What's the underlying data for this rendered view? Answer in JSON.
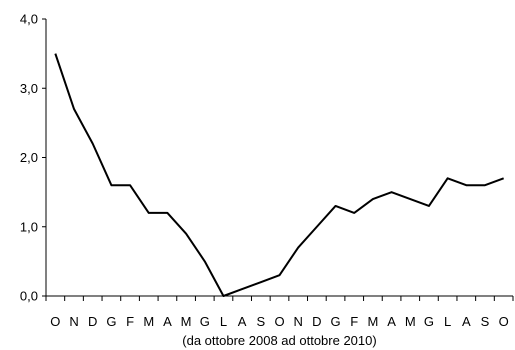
{
  "chart_data": {
    "type": "line",
    "categories": [
      "O",
      "N",
      "D",
      "G",
      "F",
      "M",
      "A",
      "M",
      "G",
      "L",
      "A",
      "S",
      "O",
      "N",
      "D",
      "G",
      "F",
      "M",
      "A",
      "M",
      "G",
      "L",
      "A",
      "S",
      "O"
    ],
    "y_tick_labels": [
      "0,0",
      "1,0",
      "2,0",
      "3,0",
      "4,0"
    ],
    "y_ticks": [
      0,
      1,
      2,
      3,
      4
    ],
    "series": [
      {
        "values": [
          3.5,
          2.7,
          2.2,
          1.6,
          1.6,
          1.2,
          1.2,
          0.9,
          0.5,
          0.0,
          0.1,
          0.2,
          0.3,
          0.7,
          1.0,
          1.3,
          1.2,
          1.4,
          1.5,
          1.4,
          1.3,
          1.7,
          1.6,
          1.6,
          1.7
        ]
      }
    ],
    "xlabel": "(da ottobre 2008 ad ottobre 2010)",
    "ylim": [
      0,
      4
    ],
    "grid": false,
    "line_color": "#000000"
  }
}
